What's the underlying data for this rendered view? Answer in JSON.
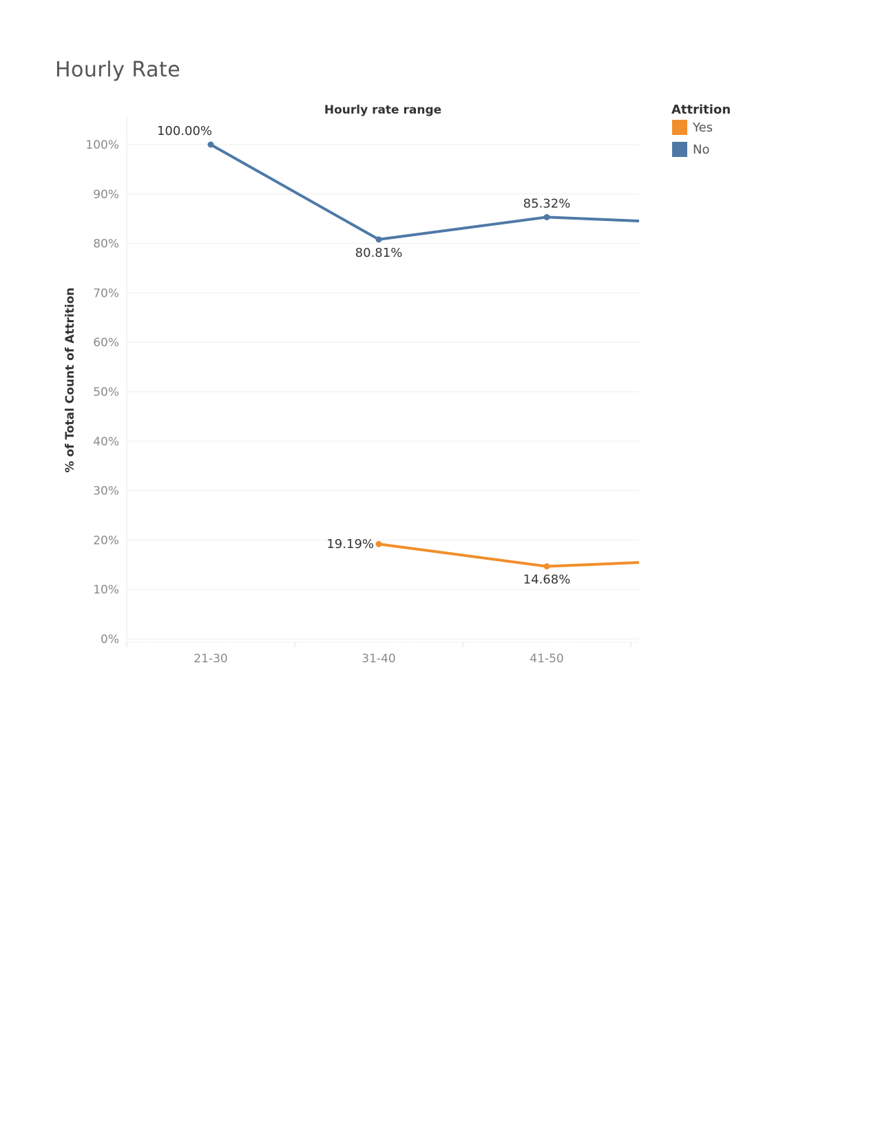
{
  "page": {
    "title": "Hourly Rate"
  },
  "chart_data": {
    "type": "line",
    "title": "Hourly Rate",
    "xlabel": "Hourly rate range",
    "ylabel": "% of Total Count of Attrition",
    "categories": [
      "21-30",
      "31-40",
      "41-50"
    ],
    "ylim": [
      0,
      100
    ],
    "yticks": [
      "0%",
      "10%",
      "20%",
      "30%",
      "40%",
      "50%",
      "60%",
      "70%",
      "80%",
      "90%",
      "100%"
    ],
    "grid": true,
    "legend": {
      "title": "Attrition",
      "position": "top-right"
    },
    "series": [
      {
        "name": "Yes",
        "color": "#F28E2B",
        "values": [
          null,
          19.19,
          14.68
        ],
        "continues_to": 16.1,
        "labels": [
          null,
          "19.19%",
          "14.68%"
        ]
      },
      {
        "name": "No",
        "color": "#4E79A7",
        "values": [
          100.0,
          80.81,
          85.32
        ],
        "continues_to": 83.9,
        "labels": [
          "100.00%",
          "80.81%",
          "85.32%"
        ]
      }
    ]
  }
}
